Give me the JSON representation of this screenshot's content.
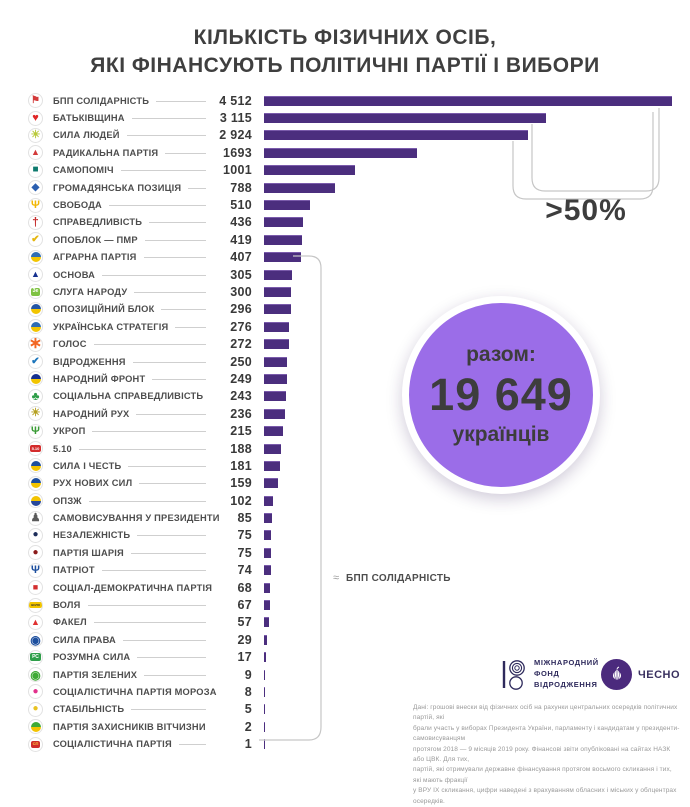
{
  "title": {
    "line1": "КІЛЬКІСТЬ ФІЗИЧНИХ ОСІБ,",
    "line2": "ЯКІ ФІНАНСУЮТЬ ПОЛІТИЧНІ ПАРТІЇ І ВИБОРИ"
  },
  "chart_data": {
    "type": "bar",
    "orientation": "horizontal",
    "title": "КІЛЬКІСТЬ ФІЗИЧНИХ ОСІБ, ЯКІ ФІНАНСУЮТЬ ПОЛІТИЧНІ ПАРТІЇ І ВИБОРИ",
    "bar_color": "#4b2e7e",
    "max_value": 4512,
    "categories": [
      "БПП СОЛІДАРНІСТЬ",
      "БАТЬКІВЩИНА",
      "СИЛА ЛЮДЕЙ",
      "РАДИКАЛЬНА ПАРТІЯ",
      "САМОПОМІЧ",
      "ГРОМАДЯНСЬКА ПОЗИЦІЯ",
      "СВОБОДА",
      "СПРАВЕДЛИВІСТЬ",
      "ОПОБЛОК — ПМР",
      "АГРАРНА ПАРТІЯ",
      "ОСНОВА",
      "СЛУГА НАРОДУ",
      "ОПОЗИЦІЙНИЙ БЛОК",
      "УКРАЇНСЬКА СТРАТЕГІЯ",
      "ГОЛОС",
      "ВІДРОДЖЕННЯ",
      "НАРОДНИЙ ФРОНТ",
      "СОЦІАЛЬНА СПРАВЕДЛИВІСТЬ",
      "НАРОДНИЙ РУХ",
      "УКРОП",
      "5.10",
      "СИЛА І ЧЕСТЬ",
      "РУХ НОВИХ СИЛ",
      "ОПЗЖ",
      "САМОВИСУВАННЯ У ПРЕЗИДЕНТИ",
      "НЕЗАЛЕЖНІСТЬ",
      "ПАРТІЯ ШАРІЯ",
      "ПАТРІОТ",
      "СОЦІАЛ-ДЕМОКРАТИЧНА ПАРТІЯ",
      "ВОЛЯ",
      "ФАКЕЛ",
      "СИЛА ПРАВА",
      "РОЗУМНА СИЛА",
      "ПАРТІЯ ЗЕЛЕНИХ",
      "СОЦІАЛІСТИЧНА ПАРТІЯ МОРОЗА",
      "СТАБІЛЬНІСТЬ",
      "ПАРТІЯ ЗАХИСНИКІВ ВІТЧИЗНИ",
      "СОЦІАЛІСТИЧНА ПАРТІЯ"
    ],
    "values": [
      4512,
      3115,
      2924,
      1693,
      1001,
      788,
      510,
      436,
      419,
      407,
      305,
      300,
      296,
      276,
      272,
      250,
      249,
      243,
      236,
      215,
      188,
      181,
      159,
      102,
      85,
      75,
      75,
      74,
      68,
      67,
      57,
      29,
      17,
      9,
      8,
      5,
      2,
      1
    ],
    "annotations": {
      "gt50_label": ">50%",
      "total_label": "разом:",
      "total_value": "19 649",
      "total_unit": "українців",
      "approx_symbol": "≈",
      "approx_legend": "БПП СОЛІДАРНІСТЬ"
    }
  },
  "parties": [
    {
      "name": "БПП СОЛІДАРНІСТЬ",
      "value": 4512,
      "value_label": "4 512",
      "icon": {
        "type": "glyph",
        "glyph": "⚑",
        "color": "#d33a3a",
        "fs": 10
      }
    },
    {
      "name": "БАТЬКІВЩИНА",
      "value": 3115,
      "value_label": "3 115",
      "icon": {
        "type": "glyph",
        "glyph": "♥",
        "color": "#e02727",
        "fs": 11
      }
    },
    {
      "name": "СИЛА ЛЮДЕЙ",
      "value": 2924,
      "value_label": "2 924",
      "icon": {
        "type": "glyph",
        "glyph": "☀",
        "color": "#b9c93a",
        "fs": 11
      }
    },
    {
      "name": "РАДИКАЛЬНА ПАРТІЯ",
      "value": 1693,
      "value_label": "1693",
      "icon": {
        "type": "glyph",
        "glyph": "▲",
        "color": "#d33a3a",
        "fs": 9
      }
    },
    {
      "name": "САМОПОМІЧ",
      "value": 1001,
      "value_label": "1001",
      "icon": {
        "type": "glyph",
        "glyph": "■",
        "color": "#0e7a6e",
        "fs": 10
      }
    },
    {
      "name": "ГРОМАДЯНСЬКА ПОЗИЦІЯ",
      "value": 788,
      "value_label": "788",
      "icon": {
        "type": "glyph",
        "glyph": "◆",
        "color": "#2b5fb0",
        "fs": 10
      }
    },
    {
      "name": "СВОБОДА",
      "value": 510,
      "value_label": "510",
      "icon": {
        "type": "glyph",
        "glyph": "Ψ",
        "color": "#f2b705",
        "fs": 11
      }
    },
    {
      "name": "СПРАВЕДЛИВІСТЬ",
      "value": 436,
      "value_label": "436",
      "icon": {
        "type": "glyph",
        "glyph": "†",
        "color": "#c62f2f",
        "fs": 12
      }
    },
    {
      "name": "ОПОБЛОК — ПМР",
      "value": 419,
      "value_label": "419",
      "icon": {
        "type": "glyph",
        "glyph": "✔",
        "color": "#e5b60e",
        "fs": 10
      }
    },
    {
      "name": "АГРАРНА ПАРТІЯ",
      "value": 407,
      "value_label": "407",
      "icon": {
        "type": "split",
        "top": "#2e6db4",
        "bottom": "#f2c500"
      }
    },
    {
      "name": "ОСНОВА",
      "value": 305,
      "value_label": "305",
      "icon": {
        "type": "glyph",
        "glyph": "▲",
        "color": "#15308f",
        "fs": 9
      }
    },
    {
      "name": "СЛУГА НАРОДУ",
      "value": 300,
      "value_label": "300",
      "icon": {
        "type": "badge",
        "bg": "#7ec242",
        "text": "Зе",
        "tc": "#ffffff",
        "fs": 5
      }
    },
    {
      "name": "ОПОЗИЦІЙНИЙ БЛОК",
      "value": 296,
      "value_label": "296",
      "icon": {
        "type": "split",
        "top": "#2456a5",
        "bottom": "#f2c500"
      }
    },
    {
      "name": "УКРАЇНСЬКА СТРАТЕГІЯ",
      "value": 276,
      "value_label": "276",
      "icon": {
        "type": "split",
        "top": "#2e6db4",
        "bottom": "#f2c500"
      }
    },
    {
      "name": "ГОЛОС",
      "value": 272,
      "value_label": "272",
      "icon": {
        "type": "glyph",
        "glyph": "∗",
        "color": "#f26522",
        "fs": 16
      }
    },
    {
      "name": "ВІДРОДЖЕННЯ",
      "value": 250,
      "value_label": "250",
      "icon": {
        "type": "glyph",
        "glyph": "✔",
        "color": "#1b75bb",
        "fs": 10
      }
    },
    {
      "name": "НАРОДНИЙ ФРОНТ",
      "value": 249,
      "value_label": "249",
      "icon": {
        "type": "split",
        "top": "#15308f",
        "bottom": "#f2c500"
      }
    },
    {
      "name": "СОЦІАЛЬНА СПРАВЕДЛИВІСТЬ",
      "value": 243,
      "value_label": "243",
      "icon": {
        "type": "glyph",
        "glyph": "♣",
        "color": "#2e9e49",
        "fs": 12
      }
    },
    {
      "name": "НАРОДНИЙ РУХ",
      "value": 236,
      "value_label": "236",
      "icon": {
        "type": "glyph",
        "glyph": "☀",
        "color": "#b5a021",
        "fs": 11
      }
    },
    {
      "name": "УКРОП",
      "value": 215,
      "value_label": "215",
      "icon": {
        "type": "glyph",
        "glyph": "Ψ",
        "color": "#3a9b35",
        "fs": 11
      }
    },
    {
      "name": "5.10",
      "value": 188,
      "value_label": "188",
      "icon": {
        "type": "badge",
        "bg": "#d32b2b",
        "text": "5.10",
        "tc": "#ffffff",
        "fs": 4
      }
    },
    {
      "name": "СИЛА І ЧЕСТЬ",
      "value": 181,
      "value_label": "181",
      "icon": {
        "type": "split",
        "top": "#1d4f9e",
        "bottom": "#f3c300"
      }
    },
    {
      "name": "РУХ НОВИХ СИЛ",
      "value": 159,
      "value_label": "159",
      "icon": {
        "type": "split",
        "top": "#1d4f9e",
        "bottom": "#f3c300"
      }
    },
    {
      "name": "ОПЗЖ",
      "value": 102,
      "value_label": "102",
      "icon": {
        "type": "split",
        "top": "#f3c300",
        "bottom": "#27489b"
      }
    },
    {
      "name": "САМОВИСУВАННЯ У ПРЕЗИДЕНТИ",
      "value": 85,
      "value_label": "85",
      "icon": {
        "type": "glyph",
        "glyph": "♟",
        "color": "#5a5a5a",
        "fs": 11
      }
    },
    {
      "name": "НЕЗАЛЕЖНІСТЬ",
      "value": 75,
      "value_label": "75",
      "icon": {
        "type": "glyph",
        "glyph": "●",
        "color": "#1d2d5a",
        "fs": 10
      }
    },
    {
      "name": "ПАРТІЯ ШАРІЯ",
      "value": 75,
      "value_label": "75",
      "icon": {
        "type": "glyph",
        "glyph": "●",
        "color": "#8b1a1a",
        "fs": 10
      }
    },
    {
      "name": "ПАТРІОТ",
      "value": 74,
      "value_label": "74",
      "icon": {
        "type": "glyph",
        "glyph": "Ψ",
        "color": "#1d4f9e",
        "fs": 11
      }
    },
    {
      "name": "СОЦІАЛ-ДЕМОКРАТИЧНА ПАРТІЯ",
      "value": 68,
      "value_label": "68",
      "icon": {
        "type": "glyph",
        "glyph": "■",
        "color": "#d32f2f",
        "fs": 9
      }
    },
    {
      "name": "ВОЛЯ",
      "value": 67,
      "value_label": "67",
      "icon": {
        "type": "badge",
        "bg": "#f2c500",
        "text": "ВОЛЯ",
        "tc": "#333333",
        "fs": 3
      }
    },
    {
      "name": "ФАКЕЛ",
      "value": 57,
      "value_label": "57",
      "icon": {
        "type": "glyph",
        "glyph": "▲",
        "color": "#e03131",
        "fs": 9
      }
    },
    {
      "name": "СИЛА ПРАВА",
      "value": 29,
      "value_label": "29",
      "icon": {
        "type": "glyph",
        "glyph": "◉",
        "color": "#1d4f9e",
        "fs": 12
      }
    },
    {
      "name": "РОЗУМНА СИЛА",
      "value": 17,
      "value_label": "17",
      "icon": {
        "type": "badge",
        "bg": "#2e9e49",
        "text": "РС",
        "tc": "#ffffff",
        "fs": 5
      }
    },
    {
      "name": "ПАРТІЯ ЗЕЛЕНИХ",
      "value": 9,
      "value_label": "9",
      "icon": {
        "type": "glyph",
        "glyph": "◉",
        "color": "#3faa35",
        "fs": 12
      }
    },
    {
      "name": "СОЦІАЛІСТИЧНА ПАРТІЯ МОРОЗА",
      "value": 8,
      "value_label": "8",
      "icon": {
        "type": "glyph",
        "glyph": "●",
        "color": "#e2308c",
        "fs": 10
      }
    },
    {
      "name": "СТАБІЛЬНІСТЬ",
      "value": 5,
      "value_label": "5",
      "icon": {
        "type": "glyph",
        "glyph": "●",
        "color": "#e8c222",
        "fs": 10
      }
    },
    {
      "name": "ПАРТІЯ ЗАХИСНИКІВ ВІТЧИЗНИ",
      "value": 2,
      "value_label": "2",
      "icon": {
        "type": "split",
        "top": "#3faa35",
        "bottom": "#f3c300"
      }
    },
    {
      "name": "СОЦІАЛІСТИЧНА ПАРТІЯ",
      "value": 1,
      "value_label": "1",
      "icon": {
        "type": "badge",
        "bg": "#cf2b2b",
        "text": "СП",
        "tc": "#ffd23e",
        "fs": 4
      }
    }
  ],
  "footer": {
    "irf_name": "МІЖНАРОДНИЙ\nФОНД\nВІДРОДЖЕННЯ",
    "chesno_name": "ЧЕСНО",
    "note": "Дані: грошові внески від фізичних осіб на рахунки центральних осередків політичних партій, які\nбрали участь у виборах Президента України, парламенту і кандидатам у президенти-самовисуванцям\nпротягом 2018 — 9 місяців 2019 року. Фінансові звіти опубліковані на сайтах НАЗК або ЦВК. Для тих,\nпартій, які отримували державне фінансування протягом восьмого скликання і тих, які мають фракції\nу ВРУ ІХ скликання, цифри наведені з врахуванням обласних і міських у облцентрах осередків."
  }
}
